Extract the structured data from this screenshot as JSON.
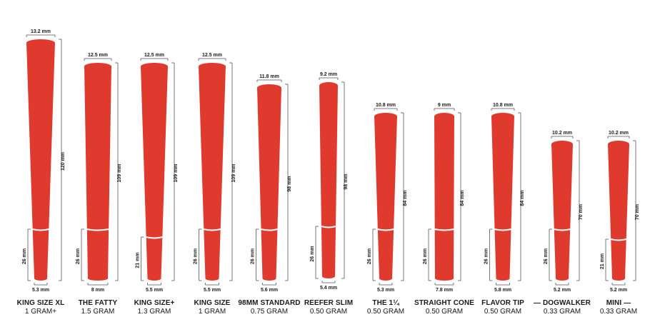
{
  "colors": {
    "cone": "#e03a2f",
    "dim_line": "#555555",
    "text": "#1a1a1a",
    "background": "#ffffff"
  },
  "cones": [
    {
      "name": "KING SIZE XL",
      "weight": "1 GRAM+",
      "top_width": "13.2 mm",
      "bottom_width": "5.3 mm",
      "length": "120 mm",
      "filter": "26 mm"
    },
    {
      "name": "THE FATTY",
      "weight": "1.5 GRAM",
      "top_width": "12.5 mm",
      "bottom_width": "8 mm",
      "length": "109 mm",
      "filter": "26 mm"
    },
    {
      "name": "KING SIZE+",
      "weight": "1.3 GRAM",
      "top_width": "12.5 mm",
      "bottom_width": "5.5 mm",
      "length": "109 mm",
      "filter": "21 mm"
    },
    {
      "name": "KING SIZE",
      "weight": "1 GRAM",
      "top_width": "12.5 mm",
      "bottom_width": "5.5 mm",
      "length": "109 mm",
      "filter": "26 mm"
    },
    {
      "name": "98MM STANDARD",
      "weight": "0.75 GRAM",
      "top_width": "11.8 mm",
      "bottom_width": "5.6 mm",
      "length": "98 mm",
      "filter": "26 mm"
    },
    {
      "name": "REEFER SLIM",
      "weight": "0.50 GRAM",
      "top_width": "9.2 mm",
      "bottom_width": "5.4 mm",
      "length": "98 mm",
      "filter": "26 mm"
    },
    {
      "name": "THE 1¼",
      "weight": "0.50 GRAM",
      "top_width": "10.8 mm",
      "bottom_width": "5.3 mm",
      "length": "84 mm",
      "filter": "26 mm"
    },
    {
      "name": "STRAIGHT CONE",
      "weight": "0.50 GRAM",
      "top_width": "9 mm",
      "bottom_width": "7.8 mm",
      "length": "84 mm",
      "filter": "26 mm"
    },
    {
      "name": "FLAVOR TIP",
      "weight": "0.50 GRAM",
      "top_width": "10.8 mm",
      "bottom_width": "5.8 mm",
      "length": "84 mm",
      "filter": "26 mm"
    },
    {
      "name": "— DOGWALKER",
      "weight": "0.33 GRAM",
      "top_width": "10.2 mm",
      "bottom_width": "5.2 mm",
      "length": "70 mm",
      "filter": "26 mm"
    },
    {
      "name": "MINI —",
      "weight": "0.33 GRAM",
      "top_width": "10.2 mm",
      "bottom_width": "5.2 mm",
      "length": "70 mm",
      "filter": "21 mm"
    }
  ]
}
